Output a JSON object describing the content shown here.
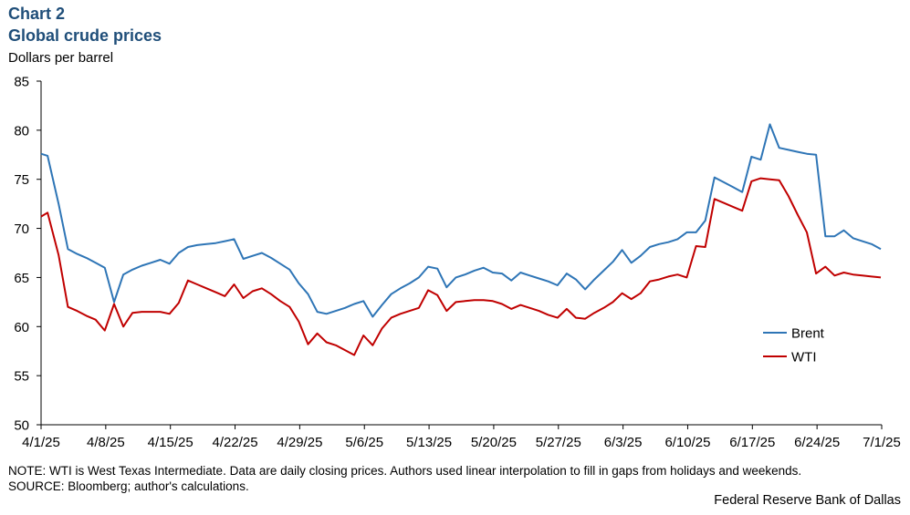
{
  "header": {
    "chart_number": "Chart 2",
    "title": "Global crude prices",
    "ylabel": "Dollars per barrel"
  },
  "footer": {
    "note": "NOTE: WTI is West Texas Intermediate.  Data are daily closing prices. Authors used linear interpolation to fill in gaps from holidays and  weekends.",
    "source": "SOURCE: Bloomberg; author's calculations.",
    "credit": "Federal Reserve Bank of Dallas"
  },
  "colors": {
    "brent": "#2e75b6",
    "wti": "#c00000",
    "title": "#1f4e79"
  },
  "chart_data": {
    "type": "line",
    "title": "Global crude prices",
    "ylabel": "Dollars per barrel",
    "xlabel": "",
    "ylim": [
      50,
      85
    ],
    "yticks": [
      50,
      55,
      60,
      65,
      70,
      75,
      80,
      85
    ],
    "x_range_days": [
      0,
      91
    ],
    "x_tick_days": [
      0,
      7,
      14,
      21,
      28,
      35,
      42,
      49,
      56,
      63,
      70,
      77,
      84,
      91
    ],
    "x_tick_labels": [
      "4/1/25",
      "4/8/25",
      "4/15/25",
      "4/22/25",
      "4/29/25",
      "5/6/25",
      "5/13/25",
      "5/20/25",
      "5/27/25",
      "6/3/25",
      "6/10/25",
      "6/17/25",
      "6/24/25",
      "7/1/25"
    ],
    "legend": "right-middle",
    "x_days": [
      0,
      0.7,
      1.9,
      2.9,
      3.9,
      4.9,
      5.9,
      6.9,
      7.9,
      8.9,
      9.9,
      10.9,
      11.9,
      12.9,
      13.9,
      14.9,
      15.9,
      16.9,
      17.9,
      18.9,
      19.9,
      20.9,
      21.9,
      22.9,
      23.9,
      24.9,
      25.9,
      26.9,
      27.9,
      28.9,
      29.9,
      30.9,
      31.9,
      32.9,
      33.9,
      34.9,
      35.9,
      36.9,
      37.9,
      38.9,
      39.9,
      40.9,
      41.9,
      42.9,
      43.9,
      44.9,
      45.9,
      46.9,
      47.9,
      48.9,
      49.9,
      50.9,
      51.9,
      52.9,
      53.9,
      54.9,
      55.9,
      56.9,
      57.9,
      58.9,
      59.9,
      60.9,
      61.9,
      62.9,
      63.9,
      64.9,
      65.9,
      66.9,
      67.9,
      68.9,
      69.9,
      70.9,
      71.9,
      72.9,
      73.9,
      74.9,
      75.9,
      76.9,
      77.9,
      78.9,
      79.9,
      80.9,
      81.9,
      82.9,
      83.9,
      84.9,
      85.9,
      86.9,
      87.9,
      88.9,
      89.9,
      90.9
    ],
    "series": [
      {
        "name": "Brent",
        "values": [
          77.6,
          77.4,
          72.5,
          67.9,
          67.4,
          67.0,
          66.5,
          66.0,
          62.5,
          65.3,
          65.8,
          66.2,
          66.5,
          66.8,
          66.4,
          67.5,
          68.1,
          68.3,
          68.4,
          68.5,
          68.7,
          68.9,
          66.9,
          67.2,
          67.5,
          67.0,
          66.4,
          65.8,
          64.4,
          63.3,
          61.5,
          61.3,
          61.6,
          61.9,
          62.3,
          62.6,
          61.0,
          62.2,
          63.3,
          63.9,
          64.4,
          65.0,
          66.1,
          65.9,
          64.0,
          65.0,
          65.3,
          65.7,
          66.0,
          65.5,
          65.4,
          64.7,
          65.5,
          65.2,
          64.9,
          64.6,
          64.2,
          65.4,
          64.8,
          63.8,
          64.8,
          65.7,
          66.6,
          67.8,
          66.5,
          67.2,
          68.1,
          68.4,
          68.6,
          68.9,
          69.6,
          69.6,
          70.8,
          75.2,
          74.7,
          74.2,
          73.7,
          77.3,
          77.0,
          80.6,
          78.2,
          78.0,
          77.8,
          77.6,
          77.5,
          69.2,
          69.2,
          69.8,
          69.0,
          68.7,
          68.4,
          67.9
        ]
      },
      {
        "name": "WTI",
        "values": [
          71.2,
          71.6,
          67.3,
          62.0,
          61.6,
          61.1,
          60.7,
          59.6,
          62.3,
          60.0,
          61.4,
          61.5,
          61.5,
          61.5,
          61.3,
          62.4,
          64.7,
          64.3,
          63.9,
          63.5,
          63.1,
          64.3,
          62.9,
          63.6,
          63.9,
          63.3,
          62.6,
          62.0,
          60.5,
          58.2,
          59.3,
          58.4,
          58.1,
          57.6,
          57.1,
          59.1,
          58.1,
          59.8,
          60.9,
          61.3,
          61.6,
          61.9,
          63.7,
          63.2,
          61.6,
          62.5,
          62.6,
          62.7,
          62.7,
          62.6,
          62.3,
          61.8,
          62.2,
          61.9,
          61.6,
          61.2,
          60.9,
          61.8,
          60.9,
          60.8,
          61.4,
          61.9,
          62.5,
          63.4,
          62.8,
          63.4,
          64.6,
          64.8,
          65.1,
          65.3,
          65.0,
          68.2,
          68.1,
          73.0,
          72.6,
          72.2,
          71.8,
          74.8,
          75.1,
          75.0,
          74.9,
          73.3,
          71.4,
          69.6,
          65.4,
          66.1,
          65.2,
          65.5,
          65.3,
          65.2,
          65.1,
          65.0
        ]
      }
    ]
  }
}
